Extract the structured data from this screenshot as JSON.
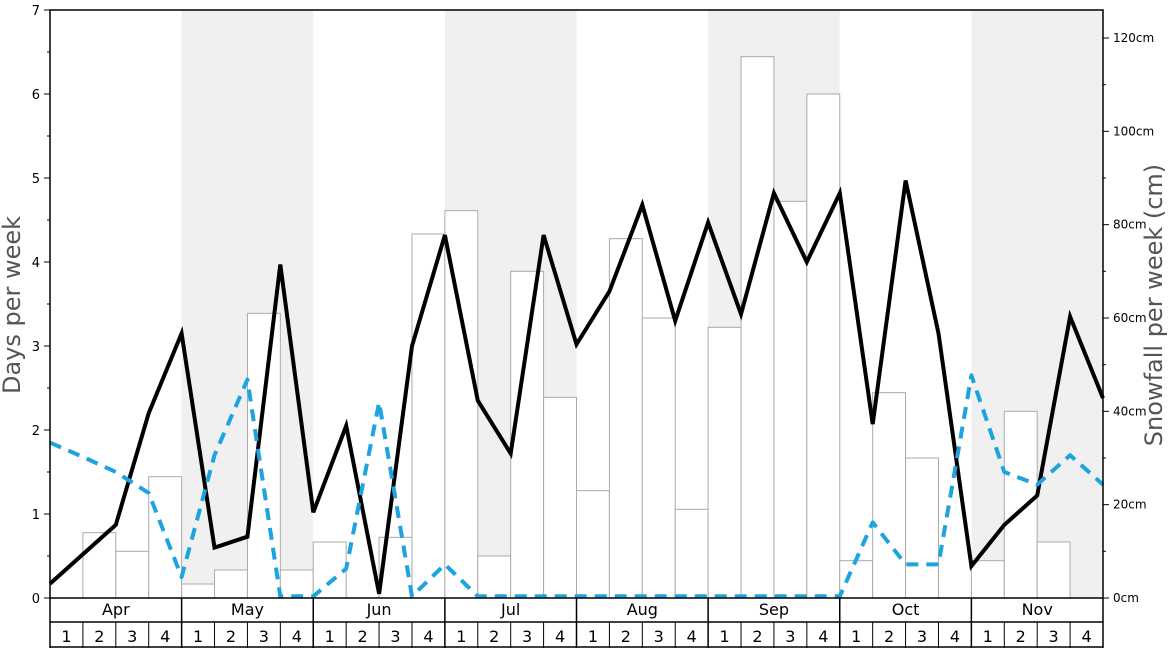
{
  "chart_data": {
    "type": "bar+line",
    "title": "",
    "months": [
      "Apr",
      "May",
      "Jun",
      "Jul",
      "Aug",
      "Sep",
      "Oct",
      "Nov"
    ],
    "week_labels": [
      "1",
      "2",
      "3",
      "4"
    ],
    "shaded_months": [
      "May",
      "Jul",
      "Sep",
      "Nov"
    ],
    "left_axis": {
      "label": "Days per week",
      "ylim": [
        0,
        7
      ],
      "ticks": [
        0,
        1,
        2,
        3,
        4,
        5,
        6,
        7
      ]
    },
    "right_axis": {
      "label": "Snowfall per week (cm)",
      "ylim": [
        0,
        126
      ],
      "ticks": [
        0,
        20,
        40,
        60,
        80,
        100,
        120
      ],
      "tick_labels": [
        "0cm",
        "20cm",
        "40cm",
        "60cm",
        "80cm",
        "100cm",
        "120cm"
      ]
    },
    "series": [
      {
        "role": "bars",
        "axis": "right",
        "color": "#ffffff",
        "stroke": "#aaaaaa",
        "values": [
          0,
          14,
          10,
          26,
          3,
          6,
          61,
          6,
          12,
          0,
          13,
          78,
          83,
          9,
          70,
          43,
          23,
          77,
          60,
          19,
          58,
          116,
          85,
          108,
          8,
          44,
          30,
          0,
          8,
          40,
          12,
          0
        ]
      },
      {
        "role": "line",
        "axis": "left",
        "style": "solid",
        "color": "#000000",
        "values": [
          0.17,
          0.52,
          0.87,
          2.2,
          3.15,
          0.6,
          0.73,
          3.97,
          1.02,
          2.05,
          0.05,
          3.0,
          4.32,
          2.35,
          1.72,
          4.32,
          3.02,
          3.65,
          4.68,
          3.3,
          4.47,
          3.38,
          4.82,
          4.0,
          4.82,
          2.07,
          4.97,
          3.15,
          0.38,
          0.87,
          1.22,
          3.35,
          2.38
        ]
      },
      {
        "role": "line",
        "axis": "left",
        "style": "dashed",
        "color": "#1ca3e0",
        "values": [
          1.85,
          1.68,
          1.5,
          1.25,
          0.25,
          1.7,
          2.6,
          0.02,
          0.02,
          0.35,
          2.33,
          0.02,
          0.4,
          0.02,
          0.02,
          0.02,
          0.02,
          0.02,
          0.02,
          0.02,
          0.02,
          0.02,
          0.02,
          0.02,
          0.02,
          0.9,
          0.4,
          0.4,
          2.65,
          1.5,
          1.35,
          1.7,
          1.35
        ]
      }
    ]
  }
}
